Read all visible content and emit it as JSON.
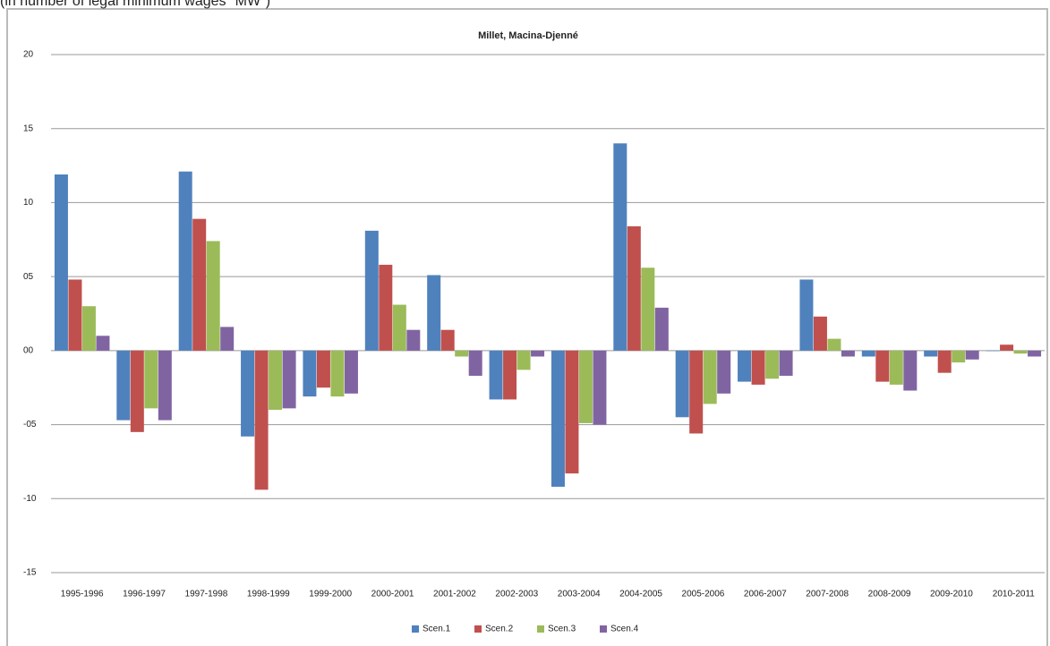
{
  "chart_data": {
    "type": "bar",
    "subtitle": "(in number of legal minimum wages \"MW\")",
    "title": "Millet, Macina-Djenné",
    "categories": [
      "1995-1996",
      "1996-1997",
      "1997-1998",
      "1998-1999",
      "1999-2000",
      "2000-2001",
      "2001-2002",
      "2002-2003",
      "2003-2004",
      "2004-2005",
      "2005-2006",
      "2006-2007",
      "2007-2008",
      "2008-2009",
      "2009-2010",
      "2010-2011"
    ],
    "series": [
      {
        "name": "Scen.1",
        "color": "#4f81bd",
        "values": [
          11.9,
          -4.7,
          12.1,
          -5.8,
          -3.1,
          8.1,
          5.1,
          -3.3,
          -9.2,
          14.0,
          -4.5,
          -2.1,
          4.8,
          -0.4,
          -0.4,
          0
        ]
      },
      {
        "name": "Scen.2",
        "color": "#c0504d",
        "values": [
          4.8,
          -5.5,
          8.9,
          -9.4,
          -2.5,
          5.8,
          1.4,
          -3.3,
          -8.3,
          8.4,
          -5.6,
          -2.3,
          2.3,
          -2.1,
          -1.5,
          0.4
        ]
      },
      {
        "name": "Scen.3",
        "color": "#9bbb59",
        "values": [
          3.0,
          -3.9,
          7.4,
          -4.0,
          -3.1,
          3.1,
          -0.4,
          -1.3,
          -4.9,
          5.6,
          -3.6,
          -1.9,
          0.8,
          -2.3,
          -0.8,
          -0.2
        ]
      },
      {
        "name": "Scen.4",
        "color": "#8064a2",
        "values": [
          1.0,
          -4.7,
          1.6,
          -3.9,
          -2.9,
          1.4,
          -1.7,
          -0.4,
          -5.0,
          2.9,
          -2.9,
          -1.7,
          -0.4,
          -2.7,
          -0.6,
          -0.4
        ]
      }
    ],
    "ylim": [
      -15,
      20
    ],
    "yticks": [
      20,
      15,
      10,
      {
        "value": 5,
        "label": "05"
      },
      {
        "value": 0,
        "label": "00"
      },
      {
        "value": -5,
        "label": "-05"
      },
      -10,
      -15
    ],
    "grid": true,
    "legend": "bottom"
  }
}
